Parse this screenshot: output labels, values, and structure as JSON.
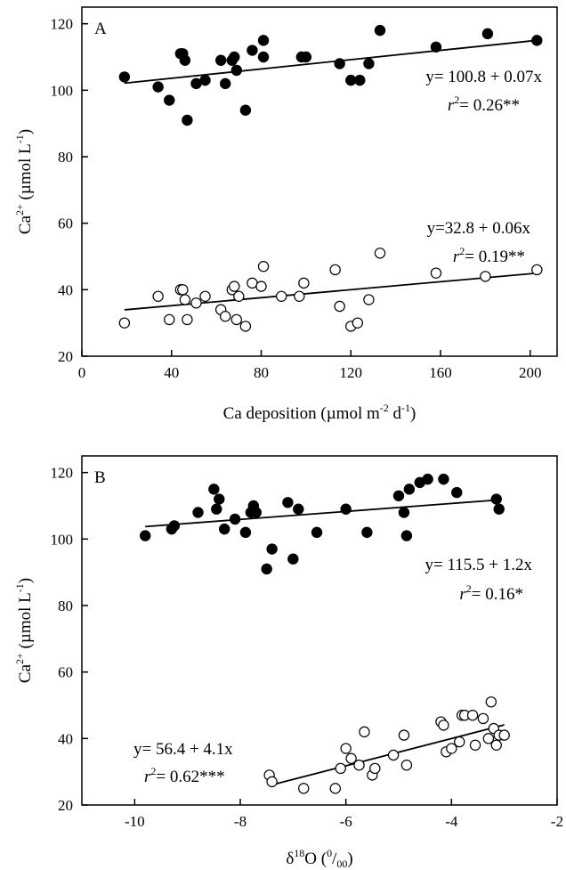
{
  "chart_data": [
    {
      "panel": "A",
      "type": "scatter",
      "xlabel": "Ca deposition (µmol m-2 d-1)",
      "ylabel": "Ca2+ (µmol L-1)",
      "xlim": [
        0,
        212
      ],
      "ylim": [
        20,
        125
      ],
      "xticks": [
        0,
        40,
        80,
        120,
        160,
        200
      ],
      "yticks": [
        20,
        40,
        60,
        80,
        100,
        120
      ],
      "series": [
        {
          "marker": "filled-circle",
          "points": [
            [
              19,
              104
            ],
            [
              34,
              101
            ],
            [
              39,
              97
            ],
            [
              44,
              111
            ],
            [
              45,
              111
            ],
            [
              46,
              109
            ],
            [
              47,
              91
            ],
            [
              51,
              102
            ],
            [
              55,
              103
            ],
            [
              62,
              109
            ],
            [
              64,
              102
            ],
            [
              67,
              109
            ],
            [
              68,
              110
            ],
            [
              69,
              106
            ],
            [
              73,
              94
            ],
            [
              76,
              112
            ],
            [
              81,
              110
            ],
            [
              81,
              115
            ],
            [
              98,
              110
            ],
            [
              100,
              110
            ],
            [
              115,
              108
            ],
            [
              120,
              103
            ],
            [
              124,
              103
            ],
            [
              128,
              108
            ],
            [
              133,
              118
            ],
            [
              158,
              113
            ],
            [
              181,
              117
            ],
            [
              203,
              115
            ]
          ],
          "fit": {
            "intercept": 100.8,
            "slope": 0.07,
            "x_range": [
              19,
              203
            ]
          },
          "equation": "y= 100.8 + 0.07x",
          "r2_value": "= 0.26**"
        },
        {
          "marker": "open-circle",
          "points": [
            [
              19,
              30
            ],
            [
              34,
              38
            ],
            [
              39,
              31
            ],
            [
              44,
              40
            ],
            [
              45,
              40
            ],
            [
              46,
              37
            ],
            [
              47,
              31
            ],
            [
              51,
              36
            ],
            [
              55,
              38
            ],
            [
              62,
              34
            ],
            [
              64,
              32
            ],
            [
              67,
              40
            ],
            [
              68,
              41
            ],
            [
              69,
              31
            ],
            [
              70,
              38
            ],
            [
              73,
              29
            ],
            [
              76,
              42
            ],
            [
              80,
              41
            ],
            [
              81,
              47
            ],
            [
              89,
              38
            ],
            [
              97,
              38
            ],
            [
              99,
              42
            ],
            [
              113,
              46
            ],
            [
              115,
              35
            ],
            [
              120,
              29
            ],
            [
              123,
              30
            ],
            [
              128,
              37
            ],
            [
              133,
              51
            ],
            [
              158,
              45
            ],
            [
              180,
              44
            ],
            [
              203,
              46
            ]
          ],
          "fit": {
            "intercept": 32.8,
            "slope": 0.06,
            "x_range": [
              19,
              203
            ]
          },
          "equation": "y=32.8 + 0.06x",
          "r2_value": "= 0.19**"
        }
      ]
    },
    {
      "panel": "B",
      "type": "scatter",
      "xlabel": "δ18O (0/00)",
      "ylabel": "Ca2+ (µmol L-1)",
      "xlim": [
        -11,
        -2
      ],
      "ylim": [
        20,
        125
      ],
      "xticks": [
        -10,
        -8,
        -6,
        -4,
        -2
      ],
      "yticks": [
        20,
        40,
        60,
        80,
        100,
        120
      ],
      "series": [
        {
          "marker": "filled-circle",
          "points": [
            [
              -9.8,
              101
            ],
            [
              -9.3,
              103
            ],
            [
              -9.25,
              104
            ],
            [
              -8.8,
              108
            ],
            [
              -8.5,
              115
            ],
            [
              -8.45,
              109
            ],
            [
              -8.4,
              112
            ],
            [
              -8.3,
              103
            ],
            [
              -8.1,
              106
            ],
            [
              -7.9,
              102
            ],
            [
              -7.8,
              108
            ],
            [
              -7.75,
              110
            ],
            [
              -7.7,
              108
            ],
            [
              -7.5,
              91
            ],
            [
              -7.4,
              97
            ],
            [
              -7.1,
              111
            ],
            [
              -7.0,
              94
            ],
            [
              -6.9,
              109
            ],
            [
              -6.55,
              102
            ],
            [
              -6.0,
              109
            ],
            [
              -5.6,
              102
            ],
            [
              -5.0,
              113
            ],
            [
              -4.9,
              108
            ],
            [
              -4.85,
              101
            ],
            [
              -4.8,
              115
            ],
            [
              -4.6,
              117
            ],
            [
              -4.45,
              118
            ],
            [
              -4.15,
              118
            ],
            [
              -3.9,
              114
            ],
            [
              -3.15,
              112
            ],
            [
              -3.1,
              109
            ]
          ],
          "fit": {
            "intercept": 115.5,
            "slope": 1.2,
            "x_range": [
              -9.8,
              -3.1
            ]
          },
          "equation": "y= 115.5 + 1.2x",
          "r2_value": "= 0.16*"
        },
        {
          "marker": "open-circle",
          "points": [
            [
              -7.45,
              29
            ],
            [
              -7.4,
              27
            ],
            [
              -6.8,
              25
            ],
            [
              -6.2,
              25
            ],
            [
              -6.1,
              31
            ],
            [
              -6.0,
              37
            ],
            [
              -5.9,
              34
            ],
            [
              -5.75,
              32
            ],
            [
              -5.65,
              42
            ],
            [
              -5.5,
              29
            ],
            [
              -5.45,
              31
            ],
            [
              -5.1,
              35
            ],
            [
              -4.9,
              41
            ],
            [
              -4.85,
              32
            ],
            [
              -4.2,
              45
            ],
            [
              -4.15,
              44
            ],
            [
              -4.1,
              36
            ],
            [
              -4.0,
              37
            ],
            [
              -3.85,
              39
            ],
            [
              -3.8,
              47
            ],
            [
              -3.75,
              47
            ],
            [
              -3.6,
              47
            ],
            [
              -3.55,
              38
            ],
            [
              -3.4,
              46
            ],
            [
              -3.3,
              40
            ],
            [
              -3.25,
              51
            ],
            [
              -3.2,
              43
            ],
            [
              -3.15,
              38
            ],
            [
              -3.1,
              41
            ],
            [
              -3.0,
              41
            ]
          ],
          "fit": {
            "intercept": 56.4,
            "slope": 4.1,
            "x_range": [
              -7.45,
              -3.0
            ]
          },
          "equation": "y= 56.4 + 4.1x",
          "r2_value": "= 0.62***"
        }
      ]
    }
  ]
}
